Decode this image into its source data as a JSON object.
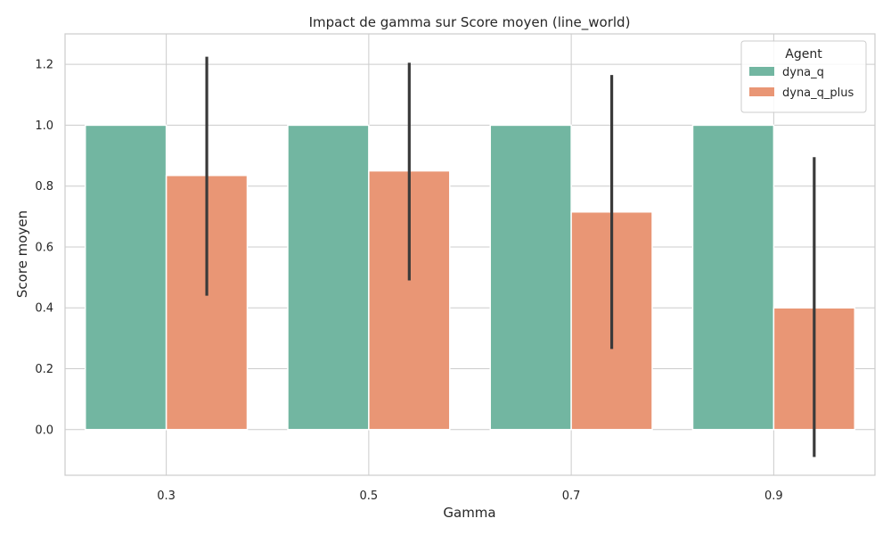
{
  "chart_data": {
    "type": "bar",
    "title": "Impact de gamma sur Score moyen (line_world)",
    "xlabel": "Gamma",
    "ylabel": "Score moyen",
    "categories": [
      "0.3",
      "0.5",
      "0.7",
      "0.9"
    ],
    "ylim": [
      -0.15,
      1.3
    ],
    "yticks": [
      0.0,
      0.2,
      0.4,
      0.6,
      0.8,
      1.0,
      1.2
    ],
    "ytick_labels": [
      "0.0",
      "0.2",
      "0.4",
      "0.6",
      "0.8",
      "1.0",
      "1.2"
    ],
    "grid": true,
    "legend": {
      "title": "Agent",
      "placement": "top-right"
    },
    "series": [
      {
        "name": "dyna_q",
        "color": "#72b6a1",
        "values": [
          1.0,
          1.0,
          1.0,
          1.0
        ],
        "error_low": [
          1.0,
          1.0,
          1.0,
          1.0
        ],
        "error_high": [
          1.0,
          1.0,
          1.0,
          1.0
        ]
      },
      {
        "name": "dyna_q_plus",
        "color": "#e99675",
        "values": [
          0.835,
          0.85,
          0.715,
          0.4
        ],
        "error_low": [
          0.44,
          0.49,
          0.265,
          -0.09
        ],
        "error_high": [
          1.225,
          1.205,
          1.165,
          0.895
        ]
      }
    ],
    "error_color": "#3a3a3a"
  }
}
